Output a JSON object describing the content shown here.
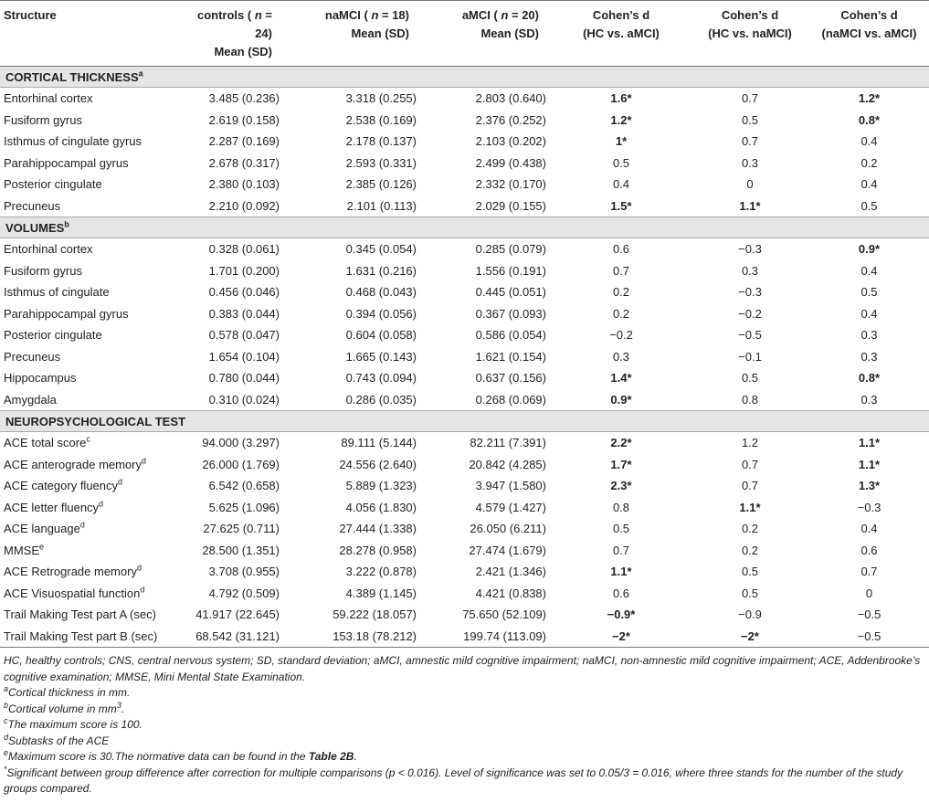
{
  "header": {
    "columns": [
      {
        "line1": [
          {
            "text": "Structure"
          }
        ]
      },
      {
        "line1": [
          {
            "text": "controls ( "
          },
          {
            "text": "n",
            "italic": true
          },
          {
            "text": " = 24)"
          }
        ],
        "line2": "Mean (SD)"
      },
      {
        "line1": [
          {
            "text": "naMCI ( "
          },
          {
            "text": "n",
            "italic": true
          },
          {
            "text": " = 18)"
          }
        ],
        "line2": "Mean (SD)"
      },
      {
        "line1": [
          {
            "text": "aMCI ( "
          },
          {
            "text": "n",
            "italic": true
          },
          {
            "text": " = 20)"
          }
        ],
        "line2": "Mean (SD)"
      },
      {
        "line1": [
          {
            "text": "Cohen’s d"
          }
        ],
        "line2": "(HC vs. aMCI)"
      },
      {
        "line1": [
          {
            "text": "Cohen’s d"
          }
        ],
        "line2": "(HC vs. naMCI)"
      },
      {
        "line1": [
          {
            "text": "Cohen’s d"
          }
        ],
        "line2": "(naMCI vs. aMCI)"
      }
    ]
  },
  "sections": [
    {
      "title": "CORTICAL THICKNESS",
      "note": "a",
      "rows": [
        {
          "label": "Entorhinal cortex",
          "cells": [
            "3.485 (0.236)",
            "3.318 (0.255)",
            "2.803 (0.640)",
            "1.6*",
            "0.7",
            "1.2*"
          ],
          "bold": [
            3,
            5
          ]
        },
        {
          "label": "Fusiform gyrus",
          "cells": [
            "2.619 (0.158)",
            "2.538 (0.169)",
            "2.376 (0.252)",
            "1.2*",
            "0.5",
            "0.8*"
          ],
          "bold": [
            3,
            5
          ]
        },
        {
          "label": "Isthmus of cingulate gyrus",
          "cells": [
            "2.287 (0.169)",
            "2.178 (0.137)",
            "2.103 (0.202)",
            "1*",
            "0.7",
            "0.4"
          ],
          "bold": [
            3
          ]
        },
        {
          "label": "Parahippocampal gyrus",
          "cells": [
            "2.678 (0.317)",
            "2.593 (0.331)",
            "2.499 (0.438)",
            "0.5",
            "0.3",
            "0.2"
          ]
        },
        {
          "label": "Posterior cingulate",
          "cells": [
            "2.380 (0.103)",
            "2.385 (0.126)",
            "2.332 (0.170)",
            "0.4",
            "0",
            "0.4"
          ]
        },
        {
          "label": "Precuneus",
          "cells": [
            "2.210 (0.092)",
            "2.101 (0.113)",
            "2.029 (0.155)",
            "1.5*",
            "1.1*",
            "0.5"
          ],
          "bold": [
            3,
            4
          ]
        }
      ]
    },
    {
      "title": "VOLUMES",
      "note": "b",
      "rows": [
        {
          "label": "Entorhinal cortex",
          "cells": [
            "0.328 (0.061)",
            "0.345 (0.054)",
            "0.285 (0.079)",
            "0.6",
            "−0.3",
            "0.9*"
          ],
          "bold": [
            5
          ]
        },
        {
          "label": "Fusiform gyrus",
          "cells": [
            "1.701 (0.200)",
            "1.631 (0.216)",
            "1.556 (0.191)",
            "0.7",
            "0.3",
            "0.4"
          ]
        },
        {
          "label": "Isthmus of cingulate",
          "cells": [
            "0.456 (0.046)",
            "0.468 (0.043)",
            "0.445 (0.051)",
            "0.2",
            "−0.3",
            "0.5"
          ]
        },
        {
          "label": "Parahippocampal gyrus",
          "cells": [
            "0.383 (0.044)",
            "0.394 (0.056)",
            "0.367 (0.093)",
            "0.2",
            "−0.2",
            "0.4"
          ]
        },
        {
          "label": "Posterior cingulate",
          "cells": [
            "0.578 (0.047)",
            "0.604 (0.058)",
            "0.586 (0.054)",
            "−0.2",
            "−0.5",
            "0.3"
          ]
        },
        {
          "label": "Precuneus",
          "cells": [
            "1.654 (0.104)",
            "1.665 (0.143)",
            "1.621 (0.154)",
            "0.3",
            "−0.1",
            "0.3"
          ]
        },
        {
          "label": "Hippocampus",
          "cells": [
            "0.780 (0.044)",
            "0.743 (0.094)",
            "0.637 (0.156)",
            "1.4*",
            "0.5",
            "0.8*"
          ],
          "bold": [
            3,
            5
          ]
        },
        {
          "label": "Amygdala",
          "cells": [
            "0.310 (0.024)",
            "0.286 (0.035)",
            "0.268 (0.069)",
            "0.9*",
            "0.8",
            "0.3"
          ],
          "bold": [
            3
          ]
        }
      ]
    },
    {
      "title": "NEUROPSYCHOLOGICAL TEST",
      "rows": [
        {
          "label": "ACE total score",
          "note": "c",
          "cells": [
            "94.000 (3.297)",
            "89.111 (5.144)",
            "82.211 (7.391)",
            "2.2*",
            "1.2",
            "1.1*"
          ],
          "bold": [
            3,
            5
          ]
        },
        {
          "label": "ACE anterograde memory",
          "note": "d",
          "cells": [
            "26.000 (1.769)",
            "24.556 (2.640)",
            "20.842 (4.285)",
            "1.7*",
            "0.7",
            "1.1*"
          ],
          "bold": [
            3,
            5
          ]
        },
        {
          "label": "ACE category fluency",
          "note": "d",
          "cells": [
            "6.542 (0.658)",
            "5.889 (1.323)",
            "3.947 (1.580)",
            "2.3*",
            "0.7",
            "1.3*"
          ],
          "bold": [
            3,
            5
          ]
        },
        {
          "label": "ACE letter fluency",
          "note": "d",
          "cells": [
            "5.625 (1.096)",
            "4.056 (1.830)",
            "4.579 (1.427)",
            "0.8",
            "1.1*",
            "−0.3"
          ],
          "bold": [
            4
          ]
        },
        {
          "label": "ACE language",
          "note": "d",
          "cells": [
            "27.625 (0.711)",
            "27.444 (1.338)",
            "26.050 (6.211)",
            "0.5",
            "0.2",
            "0.4"
          ]
        },
        {
          "label": "MMSE",
          "note": "e",
          "cells": [
            "28.500 (1.351)",
            "28.278 (0.958)",
            "27.474 (1.679)",
            "0.7",
            "0.2",
            "0.6"
          ]
        },
        {
          "label": "ACE Retrograde memory",
          "note": "d",
          "cells": [
            "3.708 (0.955)",
            "3.222 (0.878)",
            "2.421 (1.346)",
            "1.1*",
            "0.5",
            "0.7"
          ],
          "bold": [
            3
          ]
        },
        {
          "label": "ACE Visuospatial function",
          "note": "d",
          "cells": [
            "4.792 (0.509)",
            "4.389 (1.145)",
            "4.421 (0.838)",
            "0.6",
            "0.5",
            "0"
          ]
        },
        {
          "label": "Trail Making Test part A (sec)",
          "cells": [
            "41.917 (22.645)",
            "59.222 (18.057)",
            "75.650 (52.109)",
            "−0.9*",
            "−0.9",
            "−0.5"
          ],
          "bold": [
            3
          ]
        },
        {
          "label": "Trail Making Test part B (sec)",
          "cells": [
            "68.542 (31.121)",
            "153.18 (78.212)",
            "199.74 (113.09)",
            "−2*",
            "−2*",
            "−0.5"
          ],
          "bold": [
            3,
            4
          ]
        }
      ]
    }
  ],
  "footnotes": {
    "abbreviations": "HC, healthy controls; CNS, central nervous system; SD, standard deviation; aMCI, amnestic mild cognitive impairment; naMCI, non-amnestic mild cognitive impairment; ACE, Addenbrooke’s cognitive examination; MMSE, Mini Mental State Examination.",
    "notes": [
      {
        "mark": "a",
        "parts": [
          {
            "text": "Cortical thickness in mm."
          }
        ]
      },
      {
        "mark": "b",
        "parts": [
          {
            "text": "Cortical volume in mm"
          },
          {
            "text": "3",
            "sup": true
          },
          {
            "text": "."
          }
        ]
      },
      {
        "mark": "c",
        "parts": [
          {
            "text": "The maximum score is 100."
          }
        ]
      },
      {
        "mark": "d",
        "parts": [
          {
            "text": "Subtasks of the ACE"
          }
        ]
      },
      {
        "mark": "e",
        "parts": [
          {
            "text": "Maximum score is 30.The normative data can be found in the "
          },
          {
            "text": "Table 2B",
            "bold": true
          },
          {
            "text": "."
          }
        ]
      },
      {
        "mark": "*",
        "parts": [
          {
            "text": "Significant between group difference after correction for multiple comparisons (p < 0.016). Level of significance was set to 0.05/3 = 0.016, where three stands for the number of the study groups compared."
          }
        ]
      }
    ]
  }
}
